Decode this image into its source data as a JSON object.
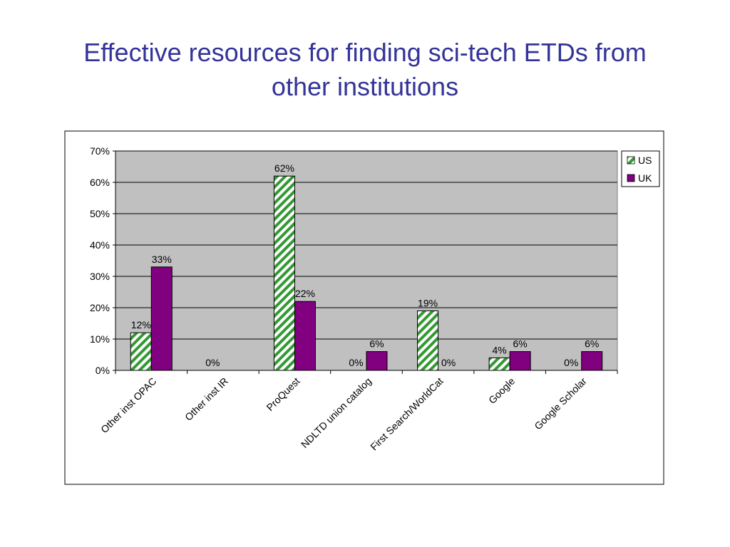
{
  "slide": {
    "title_line1": "Effective resources for finding sci-tech ETDs from",
    "title_line2": "other institutions"
  },
  "colors": {
    "title": "#333399",
    "plot_background": "#c0c0c0",
    "us_fill_stripe": "#339933",
    "us_fill_background": "#ffffff",
    "uk_fill": "#800080"
  },
  "chart_data": {
    "type": "bar",
    "title": "",
    "xlabel": "",
    "ylabel": "",
    "categories": [
      "Other inst OPAC",
      "Other inst IR",
      "ProQuest",
      "NDLTD union catalog",
      "First Search/WorldCat",
      "Google",
      "Google Scholar"
    ],
    "series": [
      {
        "name": "US",
        "values": [
          0.12,
          0,
          0.62,
          0,
          0.19,
          0.04,
          0
        ],
        "labels": [
          "12%",
          "0%",
          "62%",
          "0%",
          "19%",
          "4%",
          "0%"
        ],
        "fill": "diagonal-stripes",
        "color": "#339933"
      },
      {
        "name": "UK",
        "values": [
          0.33,
          0,
          0.22,
          0.06,
          0,
          0.06,
          0.06
        ],
        "labels": [
          "33%",
          "",
          "22%",
          "6%",
          "0%",
          "6%",
          "6%"
        ],
        "fill": "solid",
        "color": "#800080"
      }
    ],
    "ylim": [
      0,
      0.7
    ],
    "yticks": [
      0,
      0.1,
      0.2,
      0.3,
      0.4,
      0.5,
      0.6,
      0.7
    ],
    "ytick_labels": [
      "0%",
      "10%",
      "20%",
      "30%",
      "40%",
      "50%",
      "60%",
      "70%"
    ],
    "grid": true,
    "legend_position": "top-right",
    "category_label_rotation": -45
  }
}
